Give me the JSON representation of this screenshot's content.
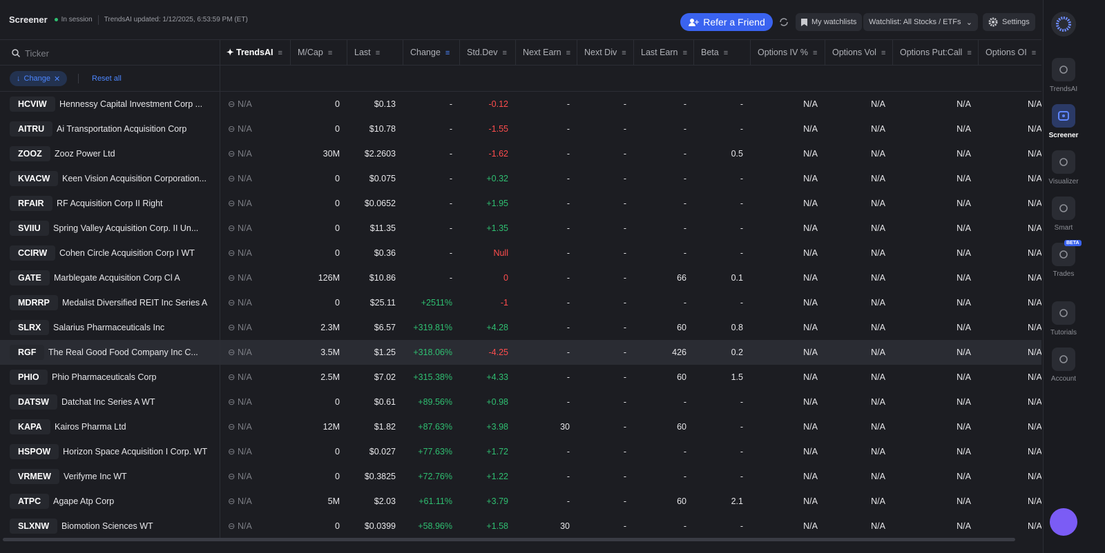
{
  "header": {
    "title": "Screener",
    "status": "In session",
    "updated": "TrendsAI updated: 1/12/2025, 6:53:59 PM (ET)",
    "refer": "Refer a Friend",
    "watchlists": "My watchlists",
    "watchlist": "Watchlist: All Stocks / ETFs",
    "settings": "Settings"
  },
  "search": {
    "placeholder": "Ticker"
  },
  "columns": [
    "TrendsAI",
    "M/Cap",
    "Last",
    "Change",
    "Std.Dev",
    "Next Earn",
    "Next Div",
    "Last Earn",
    "Beta",
    "Options IV %",
    "Options Vol",
    "Options Put:Call",
    "Options OI"
  ],
  "filters": {
    "chip": "Change",
    "reset": "Reset all"
  },
  "table": {
    "rows": [
      [
        "HCVIW",
        "Hennessy Capital Investment Corp ...",
        "N/A",
        "0",
        "$0.13",
        "-",
        "-0.12",
        "-",
        "-",
        "-",
        "-",
        "N/A",
        "N/A",
        "N/A",
        "N/A"
      ],
      [
        "AITRU",
        "Ai Transportation Acquisition Corp",
        "N/A",
        "0",
        "$10.78",
        "-",
        "-1.55",
        "-",
        "-",
        "-",
        "-",
        "N/A",
        "N/A",
        "N/A",
        "N/A"
      ],
      [
        "ZOOZ",
        "Zooz Power Ltd",
        "N/A",
        "30M",
        "$2.2603",
        "-",
        "-1.62",
        "-",
        "-",
        "-",
        "0.5",
        "N/A",
        "N/A",
        "N/A",
        "N/A"
      ],
      [
        "KVACW",
        "Keen Vision Acquisition Corporation...",
        "N/A",
        "0",
        "$0.075",
        "-",
        "+0.32",
        "-",
        "-",
        "-",
        "-",
        "N/A",
        "N/A",
        "N/A",
        "N/A"
      ],
      [
        "RFAIR",
        "RF Acquisition Corp II Right",
        "N/A",
        "0",
        "$0.0652",
        "-",
        "+1.95",
        "-",
        "-",
        "-",
        "-",
        "N/A",
        "N/A",
        "N/A",
        "N/A"
      ],
      [
        "SVIIU",
        "Spring Valley Acquisition Corp. II Un...",
        "N/A",
        "0",
        "$11.35",
        "-",
        "+1.35",
        "-",
        "-",
        "-",
        "-",
        "N/A",
        "N/A",
        "N/A",
        "N/A"
      ],
      [
        "CCIRW",
        "Cohen Circle Acquisition Corp I WT",
        "N/A",
        "0",
        "$0.36",
        "-",
        "Null",
        "-",
        "-",
        "-",
        "-",
        "N/A",
        "N/A",
        "N/A",
        "N/A"
      ],
      [
        "GATE",
        "Marblegate Acquisition Corp Cl A",
        "N/A",
        "126M",
        "$10.86",
        "-",
        "0",
        "-",
        "-",
        "66",
        "0.1",
        "N/A",
        "N/A",
        "N/A",
        "N/A"
      ],
      [
        "MDRRP",
        "Medalist Diversified REIT Inc Series A",
        "N/A",
        "0",
        "$25.11",
        "+2511%",
        "-1",
        "-",
        "-",
        "-",
        "-",
        "N/A",
        "N/A",
        "N/A",
        "N/A"
      ],
      [
        "SLRX",
        "Salarius Pharmaceuticals Inc",
        "N/A",
        "2.3M",
        "$6.57",
        "+319.81%",
        "+4.28",
        "-",
        "-",
        "60",
        "0.8",
        "N/A",
        "N/A",
        "N/A",
        "N/A"
      ],
      [
        "RGF",
        "The Real Good Food Company Inc C...",
        "N/A",
        "3.5M",
        "$1.25",
        "+318.06%",
        "-4.25",
        "-",
        "-",
        "426",
        "0.2",
        "N/A",
        "N/A",
        "N/A",
        "N/A"
      ],
      [
        "PHIO",
        "Phio Pharmaceuticals Corp",
        "N/A",
        "2.5M",
        "$7.02",
        "+315.38%",
        "+4.33",
        "-",
        "-",
        "60",
        "1.5",
        "N/A",
        "N/A",
        "N/A",
        "N/A"
      ],
      [
        "DATSW",
        "Datchat Inc Series A WT",
        "N/A",
        "0",
        "$0.61",
        "+89.56%",
        "+0.98",
        "-",
        "-",
        "-",
        "-",
        "N/A",
        "N/A",
        "N/A",
        "N/A"
      ],
      [
        "KAPA",
        "Kairos Pharma Ltd",
        "N/A",
        "12M",
        "$1.82",
        "+87.63%",
        "+3.98",
        "30",
        "-",
        "60",
        "-",
        "N/A",
        "N/A",
        "N/A",
        "N/A"
      ],
      [
        "HSPOW",
        "Horizon Space Acquisition I Corp. WT",
        "N/A",
        "0",
        "$0.027",
        "+77.63%",
        "+1.72",
        "-",
        "-",
        "-",
        "-",
        "N/A",
        "N/A",
        "N/A",
        "N/A"
      ],
      [
        "VRMEW",
        "Verifyme Inc WT",
        "N/A",
        "0",
        "$0.3825",
        "+72.76%",
        "+1.22",
        "-",
        "-",
        "-",
        "-",
        "N/A",
        "N/A",
        "N/A",
        "N/A"
      ],
      [
        "ATPC",
        "Agape Atp Corp",
        "N/A",
        "5M",
        "$2.03",
        "+61.11%",
        "+3.79",
        "-",
        "-",
        "60",
        "2.1",
        "N/A",
        "N/A",
        "N/A",
        "N/A"
      ],
      [
        "SLXNW",
        "Biomotion Sciences WT",
        "N/A",
        "0",
        "$0.0399",
        "+58.96%",
        "+1.58",
        "30",
        "-",
        "-",
        "-",
        "N/A",
        "N/A",
        "N/A",
        "N/A"
      ]
    ],
    "selected": 10
  },
  "sidebar": {
    "items": [
      "TrendsAI",
      "Screener",
      "Visualizer",
      "Smart",
      "Trades",
      "Tutorials",
      "Account"
    ],
    "badge": "BETA"
  }
}
